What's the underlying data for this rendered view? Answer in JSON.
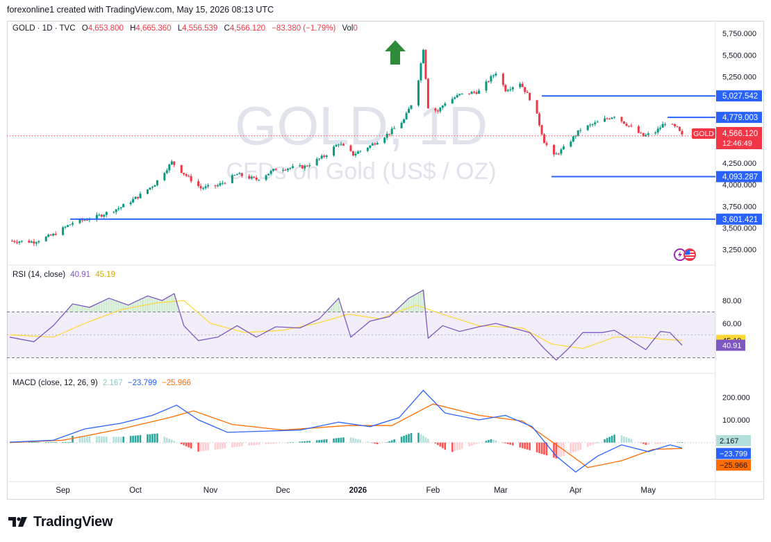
{
  "header": {
    "attribution": "forexonline1 created with TradingView.com, May 15, 2026 08:13 UTC"
  },
  "symbol_line": {
    "symbol": "GOLD · 1D · TVC",
    "open_label": "O",
    "open": "4,653.800",
    "high_label": "H",
    "high": "4,665.360",
    "low_label": "L",
    "low": "4,556.539",
    "close_label": "C",
    "close": "4,566.120",
    "change": "−83.380 (−1.79%)",
    "vol_label": "Vol",
    "vol": "0"
  },
  "watermark": {
    "line1": "GOLD, 1D",
    "line2": "CFDs on Gold (US$ / OZ)"
  },
  "price_badge": {
    "symbol": "GOLD",
    "price": "4,566.120",
    "countdown": "12:46:49"
  },
  "rsi_legend": {
    "name": "RSI (14, close)",
    "rsi": "40.91",
    "ma": "45.19"
  },
  "macd_legend": {
    "name": "MACD (close, 12, 26, 9)",
    "hist": "2.167",
    "macd": "−23.799",
    "signal": "−25.966"
  },
  "footer": {
    "brand": "TradingView"
  },
  "colors": {
    "up": "#089981",
    "down": "#f23645",
    "level": "#2962ff",
    "arrow": "#2e8b3a",
    "rsi": "#7e57c2",
    "rsi_ma": "#fdd835",
    "macd": "#2962ff",
    "signal": "#ff6d00",
    "hist_up_strong": "#26a69a",
    "hist_up_weak": "#b2dfdb",
    "hist_down_strong": "#ff5252",
    "hist_down_weak": "#ffcdd2"
  },
  "icons": [
    "arrow-up-icon",
    "lightning-icon",
    "us-flag-icon",
    "tradingview-logo-icon"
  ],
  "chart_data": [
    {
      "type": "candlestick",
      "title": "GOLD, 1D",
      "subtitle": "CFDs on Gold (US$ / OZ)",
      "x_tick_labels": [
        "Sep",
        "Oct",
        "Nov",
        "Dec",
        "2026",
        "Feb",
        "Mar",
        "Apr",
        "May"
      ],
      "y_tick_labels": [
        "5,750.000",
        "5,500.000",
        "5,250.000",
        "4,250.000",
        "4,000.000",
        "3,750.000",
        "3,500.000",
        "3,250.000"
      ],
      "ylim": [
        3150,
        5800
      ],
      "close_path": [
        {
          "date": "2025-08-10",
          "close": 3350
        },
        {
          "date": "2025-08-20",
          "close": 3340
        },
        {
          "date": "2025-08-28",
          "close": 3420
        },
        {
          "date": "2025-09-05",
          "close": 3560
        },
        {
          "date": "2025-09-15",
          "close": 3630
        },
        {
          "date": "2025-09-25",
          "close": 3740
        },
        {
          "date": "2025-10-03",
          "close": 3880
        },
        {
          "date": "2025-10-09",
          "close": 4010
        },
        {
          "date": "2025-10-16",
          "close": 4260
        },
        {
          "date": "2025-10-21",
          "close": 4130
        },
        {
          "date": "2025-10-28",
          "close": 3960
        },
        {
          "date": "2025-11-04",
          "close": 3990
        },
        {
          "date": "2025-11-12",
          "close": 4120
        },
        {
          "date": "2025-11-20",
          "close": 4060
        },
        {
          "date": "2025-11-28",
          "close": 4180
        },
        {
          "date": "2025-12-10",
          "close": 4210
        },
        {
          "date": "2025-12-18",
          "close": 4330
        },
        {
          "date": "2025-12-24",
          "close": 4480
        },
        {
          "date": "2025-12-30",
          "close": 4350
        },
        {
          "date": "2026-01-06",
          "close": 4450
        },
        {
          "date": "2026-01-14",
          "close": 4600
        },
        {
          "date": "2026-01-20",
          "close": 4750
        },
        {
          "date": "2026-01-25",
          "close": 5050
        },
        {
          "date": "2026-01-28",
          "close": 5580
        },
        {
          "date": "2026-01-30",
          "close": 4900
        },
        {
          "date": "2026-02-03",
          "close": 4850
        },
        {
          "date": "2026-02-06",
          "close": 4950
        },
        {
          "date": "2026-02-12",
          "close": 5040
        },
        {
          "date": "2026-02-20",
          "close": 5080
        },
        {
          "date": "2026-02-27",
          "close": 5300
        },
        {
          "date": "2026-03-03",
          "close": 5100
        },
        {
          "date": "2026-03-09",
          "close": 5180
        },
        {
          "date": "2026-03-13",
          "close": 5000
        },
        {
          "date": "2026-03-16",
          "close": 4800
        },
        {
          "date": "2026-03-19",
          "close": 4500
        },
        {
          "date": "2026-03-23",
          "close": 4330
        },
        {
          "date": "2026-03-27",
          "close": 4420
        },
        {
          "date": "2026-04-03",
          "close": 4640
        },
        {
          "date": "2026-04-10",
          "close": 4720
        },
        {
          "date": "2026-04-17",
          "close": 4800
        },
        {
          "date": "2026-04-22",
          "close": 4700
        },
        {
          "date": "2026-04-29",
          "close": 4560
        },
        {
          "date": "2026-05-04",
          "close": 4610
        },
        {
          "date": "2026-05-08",
          "close": 4720
        },
        {
          "date": "2026-05-13",
          "close": 4650
        },
        {
          "date": "2026-05-15",
          "close": 4566.12
        }
      ],
      "levels": [
        {
          "value": 5027.542,
          "label": "5,027.542",
          "from": "2026-03-18"
        },
        {
          "value": 4779.003,
          "label": "4,779.003",
          "from": "2026-05-09"
        },
        {
          "value": 4093.287,
          "label": "4,093.287",
          "from": "2026-03-22"
        },
        {
          "value": 3601.421,
          "label": "3,601.421",
          "from": "2025-09-04"
        }
      ],
      "last_price": 4566.12
    },
    {
      "type": "line",
      "title": "RSI (14, close)",
      "y_tick_labels": [
        "80.00",
        "60.00"
      ],
      "ylim": [
        20,
        100
      ],
      "bands": [
        30,
        70
      ],
      "series": [
        {
          "name": "RSI",
          "points": [
            {
              "date": "2025-08-10",
              "value": 48
            },
            {
              "date": "2025-08-20",
              "value": 44
            },
            {
              "date": "2025-08-28",
              "value": 58
            },
            {
              "date": "2025-09-05",
              "value": 77
            },
            {
              "date": "2025-09-12",
              "value": 74
            },
            {
              "date": "2025-09-20",
              "value": 82
            },
            {
              "date": "2025-09-28",
              "value": 76
            },
            {
              "date": "2025-10-06",
              "value": 84
            },
            {
              "date": "2025-10-12",
              "value": 80
            },
            {
              "date": "2025-10-17",
              "value": 86
            },
            {
              "date": "2025-10-21",
              "value": 58
            },
            {
              "date": "2025-10-27",
              "value": 45
            },
            {
              "date": "2025-11-04",
              "value": 48
            },
            {
              "date": "2025-11-12",
              "value": 58
            },
            {
              "date": "2025-11-20",
              "value": 48
            },
            {
              "date": "2025-11-28",
              "value": 57
            },
            {
              "date": "2025-12-08",
              "value": 56
            },
            {
              "date": "2025-12-16",
              "value": 64
            },
            {
              "date": "2025-12-24",
              "value": 82
            },
            {
              "date": "2025-12-29",
              "value": 48
            },
            {
              "date": "2026-01-06",
              "value": 62
            },
            {
              "date": "2026-01-14",
              "value": 66
            },
            {
              "date": "2026-01-22",
              "value": 82
            },
            {
              "date": "2026-01-28",
              "value": 89
            },
            {
              "date": "2026-01-30",
              "value": 47
            },
            {
              "date": "2026-02-05",
              "value": 58
            },
            {
              "date": "2026-02-12",
              "value": 53
            },
            {
              "date": "2026-02-20",
              "value": 57
            },
            {
              "date": "2026-02-27",
              "value": 60
            },
            {
              "date": "2026-03-06",
              "value": 56
            },
            {
              "date": "2026-03-13",
              "value": 52
            },
            {
              "date": "2026-03-19",
              "value": 38
            },
            {
              "date": "2026-03-24",
              "value": 28
            },
            {
              "date": "2026-03-29",
              "value": 38
            },
            {
              "date": "2026-04-04",
              "value": 52
            },
            {
              "date": "2026-04-12",
              "value": 52
            },
            {
              "date": "2026-04-17",
              "value": 54
            },
            {
              "date": "2026-04-24",
              "value": 45
            },
            {
              "date": "2026-04-30",
              "value": 37
            },
            {
              "date": "2026-05-06",
              "value": 53
            },
            {
              "date": "2026-05-10",
              "value": 52
            },
            {
              "date": "2026-05-15",
              "value": 40.91
            }
          ]
        },
        {
          "name": "RSI-based MA",
          "points": [
            {
              "date": "2025-08-10",
              "value": 50
            },
            {
              "date": "2025-08-28",
              "value": 48
            },
            {
              "date": "2025-09-10",
              "value": 60
            },
            {
              "date": "2025-09-25",
              "value": 72
            },
            {
              "date": "2025-10-10",
              "value": 78
            },
            {
              "date": "2025-10-21",
              "value": 80
            },
            {
              "date": "2025-11-01",
              "value": 60
            },
            {
              "date": "2025-11-15",
              "value": 52
            },
            {
              "date": "2025-12-01",
              "value": 54
            },
            {
              "date": "2025-12-15",
              "value": 60
            },
            {
              "date": "2025-12-28",
              "value": 68
            },
            {
              "date": "2026-01-10",
              "value": 64
            },
            {
              "date": "2026-01-25",
              "value": 76
            },
            {
              "date": "2026-02-05",
              "value": 68
            },
            {
              "date": "2026-02-20",
              "value": 58
            },
            {
              "date": "2026-03-10",
              "value": 56
            },
            {
              "date": "2026-03-22",
              "value": 42
            },
            {
              "date": "2026-04-04",
              "value": 38
            },
            {
              "date": "2026-04-17",
              "value": 48
            },
            {
              "date": "2026-04-28",
              "value": 48
            },
            {
              "date": "2026-05-08",
              "value": 46
            },
            {
              "date": "2026-05-15",
              "value": 45.19
            }
          ]
        }
      ],
      "last_values": {
        "rsi": 40.91,
        "ma": 45.19
      }
    },
    {
      "type": "line",
      "title": "MACD (close, 12, 26, 9)",
      "y_tick_labels": [
        "200.000",
        "100.000"
      ],
      "ylim": [
        -160,
        250
      ],
      "series": [
        {
          "name": "MACD",
          "points": [
            {
              "date": "2025-08-10",
              "value": 2
            },
            {
              "date": "2025-08-28",
              "value": 10
            },
            {
              "date": "2025-09-10",
              "value": 60
            },
            {
              "date": "2025-09-25",
              "value": 85
            },
            {
              "date": "2025-10-08",
              "value": 120
            },
            {
              "date": "2025-10-18",
              "value": 165
            },
            {
              "date": "2025-10-27",
              "value": 100
            },
            {
              "date": "2025-11-08",
              "value": 45
            },
            {
              "date": "2025-11-22",
              "value": 50
            },
            {
              "date": "2025-12-08",
              "value": 55
            },
            {
              "date": "2025-12-24",
              "value": 90
            },
            {
              "date": "2026-01-06",
              "value": 70
            },
            {
              "date": "2026-01-18",
              "value": 110
            },
            {
              "date": "2026-01-28",
              "value": 230
            },
            {
              "date": "2026-02-06",
              "value": 130
            },
            {
              "date": "2026-02-20",
              "value": 100
            },
            {
              "date": "2026-03-03",
              "value": 120
            },
            {
              "date": "2026-03-14",
              "value": 70
            },
            {
              "date": "2026-03-24",
              "value": -60
            },
            {
              "date": "2026-04-01",
              "value": -130
            },
            {
              "date": "2026-04-10",
              "value": -60
            },
            {
              "date": "2026-04-20",
              "value": -10
            },
            {
              "date": "2026-05-01",
              "value": -40
            },
            {
              "date": "2026-05-10",
              "value": -10
            },
            {
              "date": "2026-05-15",
              "value": -23.799
            }
          ]
        },
        {
          "name": "Signal",
          "points": [
            {
              "date": "2025-08-10",
              "value": 0
            },
            {
              "date": "2025-09-01",
              "value": 10
            },
            {
              "date": "2025-09-25",
              "value": 60
            },
            {
              "date": "2025-10-15",
              "value": 110
            },
            {
              "date": "2025-10-25",
              "value": 140
            },
            {
              "date": "2025-11-10",
              "value": 80
            },
            {
              "date": "2025-12-01",
              "value": 55
            },
            {
              "date": "2025-12-28",
              "value": 75
            },
            {
              "date": "2026-01-15",
              "value": 75
            },
            {
              "date": "2026-02-01",
              "value": 170
            },
            {
              "date": "2026-02-20",
              "value": 120
            },
            {
              "date": "2026-03-10",
              "value": 95
            },
            {
              "date": "2026-03-28",
              "value": -40
            },
            {
              "date": "2026-04-06",
              "value": -110
            },
            {
              "date": "2026-04-20",
              "value": -80
            },
            {
              "date": "2026-05-03",
              "value": -30
            },
            {
              "date": "2026-05-15",
              "value": -25.966
            }
          ]
        }
      ],
      "histogram": [
        {
          "date": "2025-09-05",
          "value": 30
        },
        {
          "date": "2025-09-25",
          "value": 25
        },
        {
          "date": "2025-10-10",
          "value": 40
        },
        {
          "date": "2025-10-27",
          "value": -40
        },
        {
          "date": "2025-11-15",
          "value": -15
        },
        {
          "date": "2025-12-15",
          "value": 10
        },
        {
          "date": "2025-12-28",
          "value": 25
        },
        {
          "date": "2026-01-10",
          "value": -10
        },
        {
          "date": "2026-01-25",
          "value": 50
        },
        {
          "date": "2026-02-08",
          "value": -45
        },
        {
          "date": "2026-02-25",
          "value": 15
        },
        {
          "date": "2026-03-15",
          "value": -40
        },
        {
          "date": "2026-03-24",
          "value": -70
        },
        {
          "date": "2026-04-05",
          "value": -25
        },
        {
          "date": "2026-04-18",
          "value": 40
        },
        {
          "date": "2026-04-30",
          "value": -10
        },
        {
          "date": "2026-05-15",
          "value": 2.167
        }
      ],
      "last_values": {
        "histogram": 2.167,
        "macd": -23.799,
        "signal": -25.966
      }
    }
  ]
}
